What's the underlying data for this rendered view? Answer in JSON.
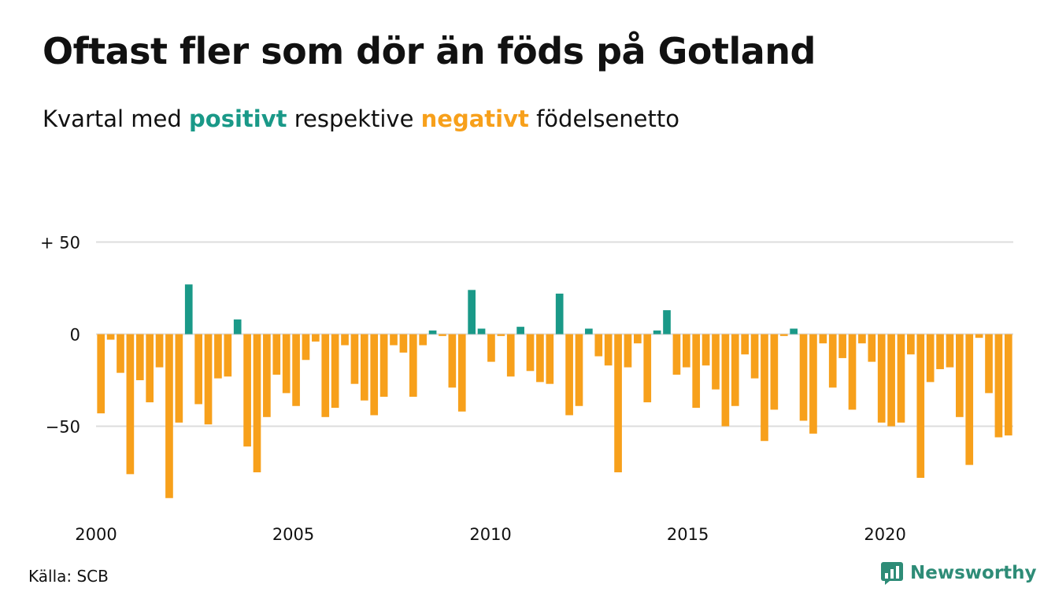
{
  "title": "Oftast fler som dör än föds på Gotland",
  "subtitle": {
    "prefix": "Kvartal med ",
    "positive_word": "positivt",
    "middle": " respektive ",
    "negative_word": "negativt",
    "suffix": " födelsenetto"
  },
  "source": "Källa: SCB",
  "brand": "Newsworthy",
  "colors": {
    "positive": "#1a9988",
    "negative": "#f7a01b",
    "grid": "#dddddd",
    "brand": "#2e8c77"
  },
  "chart_data": {
    "type": "bar",
    "ytick_labels": [
      {
        "value": 50,
        "label": "+ 50"
      },
      {
        "value": 0,
        "label": "0"
      },
      {
        "value": -50,
        "label": "−50"
      }
    ],
    "xtick_labels": [
      "2000",
      "2005",
      "2010",
      "2015",
      "2020"
    ],
    "ylim": [
      -95,
      55
    ],
    "xlim": [
      2000,
      2023.25
    ],
    "grid": true,
    "legend": "none",
    "start_year": 2000,
    "values": [
      -43,
      -3,
      -21,
      -76,
      -25,
      -37,
      -18,
      -89,
      -48,
      27,
      -38,
      -49,
      -24,
      -23,
      8,
      -61,
      -75,
      -45,
      -22,
      -32,
      -39,
      -14,
      -4,
      -45,
      -40,
      -6,
      -27,
      -36,
      -44,
      -34,
      -6,
      -10,
      -34,
      -6,
      2,
      -1,
      -29,
      -42,
      24,
      3,
      -15,
      -1,
      -23,
      4,
      -20,
      -26,
      -27,
      22,
      -44,
      -39,
      3,
      -12,
      -17,
      -75,
      -18,
      -5,
      -37,
      2,
      13,
      -22,
      -18,
      -40,
      -17,
      -30,
      -50,
      -39,
      -11,
      -24,
      -58,
      -41,
      -1,
      3,
      -47,
      -54,
      -5,
      -29,
      -13,
      -41,
      -5,
      -15,
      -48,
      -50,
      -48,
      -11,
      -78,
      -26,
      -19,
      -18,
      -45,
      -71,
      -2,
      -32,
      -56,
      -55
    ]
  }
}
